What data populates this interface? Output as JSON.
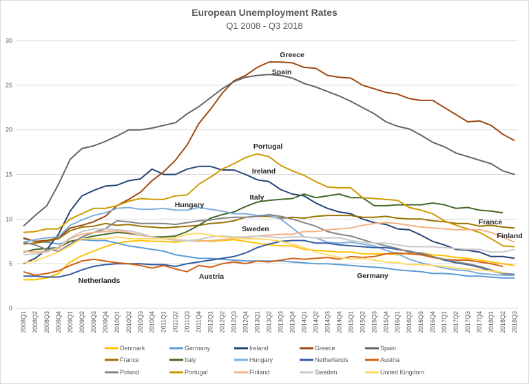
{
  "chart_data": {
    "type": "line",
    "title": "European Unemployment Rates",
    "subtitle": "Q1 2008 - Q3 2018",
    "xlabel": "",
    "ylabel": "",
    "ylim": [
      0,
      30
    ],
    "yticks": [
      0,
      5,
      10,
      15,
      20,
      25,
      30
    ],
    "grid": true,
    "legend": "bottom",
    "categories": [
      "2008Q1",
      "2008Q2",
      "2008Q3",
      "2008Q4",
      "2009Q1",
      "2009Q2",
      "2009Q3",
      "2009Q4",
      "2010Q1",
      "2010Q2",
      "2010Q3",
      "2010Q4",
      "2011Q1",
      "2011Q2",
      "2011Q3",
      "2011Q4",
      "2012Q1",
      "2012Q2",
      "2012Q3",
      "2012Q4",
      "2013Q1",
      "2013Q2",
      "2013Q3",
      "2013Q4",
      "2014Q1",
      "2014Q2",
      "2014Q3",
      "2014Q4",
      "2015Q1",
      "2015Q2",
      "2015Q3",
      "2015Q4",
      "2016Q1",
      "2016Q2",
      "2016Q3",
      "2016Q4",
      "2017Q1",
      "2017Q2",
      "2017Q3",
      "2017Q4",
      "2018Q1",
      "2018Q2",
      "2018Q3"
    ],
    "series": [
      {
        "name": "Denmark",
        "color": "#FFC000",
        "values": [
          3.2,
          3.2,
          3.4,
          3.9,
          5.2,
          5.9,
          6.4,
          6.9,
          7.3,
          7.5,
          7.6,
          7.5,
          7.5,
          7.4,
          7.6,
          7.6,
          7.5,
          7.6,
          7.7,
          7.5,
          7.3,
          7.1,
          7.0,
          7.0,
          6.6,
          6.5,
          6.4,
          6.3,
          6.3,
          6.1,
          6.1,
          6.1,
          6.0,
          6.2,
          6.2,
          6.0,
          5.9,
          5.7,
          5.6,
          5.4,
          5.2,
          5.0,
          4.8
        ]
      },
      {
        "name": "Germany",
        "color": "#5B9BD5",
        "values": [
          7.8,
          7.5,
          7.4,
          7.2,
          7.5,
          7.7,
          7.6,
          7.6,
          7.3,
          7.0,
          6.8,
          6.6,
          6.4,
          6.0,
          5.8,
          5.6,
          5.6,
          5.5,
          5.4,
          5.3,
          5.3,
          5.3,
          5.3,
          5.2,
          5.1,
          5.0,
          5.0,
          4.9,
          4.8,
          4.7,
          4.6,
          4.5,
          4.3,
          4.2,
          4.1,
          3.9,
          3.9,
          3.8,
          3.6,
          3.6,
          3.5,
          3.4,
          3.4
        ]
      },
      {
        "name": "Ireland",
        "color": "#264478",
        "values": [
          5.0,
          5.6,
          6.6,
          8.3,
          10.9,
          12.6,
          13.2,
          13.7,
          13.8,
          14.3,
          14.5,
          15.6,
          15.0,
          15.0,
          15.6,
          15.9,
          15.9,
          15.5,
          15.5,
          15.0,
          14.4,
          14.2,
          13.3,
          12.8,
          12.6,
          11.8,
          11.2,
          10.8,
          10.6,
          10.0,
          9.6,
          9.4,
          8.9,
          8.8,
          8.2,
          7.5,
          7.1,
          6.6,
          6.5,
          6.3,
          5.8,
          5.8,
          5.6
        ]
      },
      {
        "name": "Greece",
        "color": "#9E480E",
        "values": [
          7.9,
          7.5,
          7.6,
          7.9,
          9.0,
          9.3,
          9.7,
          10.3,
          11.5,
          12.2,
          13.0,
          14.3,
          15.3,
          16.6,
          18.3,
          20.7,
          22.3,
          24.1,
          25.5,
          26.1,
          27.0,
          27.6,
          27.6,
          27.5,
          27.0,
          26.9,
          26.1,
          25.9,
          25.8,
          25.0,
          24.6,
          24.2,
          24.0,
          23.5,
          23.3,
          23.3,
          22.5,
          21.7,
          20.9,
          21.0,
          20.5,
          19.5,
          18.8
        ]
      },
      {
        "name": "Spain",
        "color": "#636363",
        "values": [
          9.2,
          10.4,
          11.5,
          13.9,
          16.7,
          17.9,
          18.2,
          18.7,
          19.3,
          20.0,
          20.0,
          20.2,
          20.5,
          20.8,
          21.8,
          22.6,
          23.6,
          24.6,
          25.4,
          25.9,
          26.1,
          26.2,
          26.1,
          25.8,
          25.2,
          24.8,
          24.3,
          23.8,
          23.2,
          22.5,
          21.8,
          20.9,
          20.4,
          20.1,
          19.4,
          18.6,
          18.1,
          17.4,
          17.0,
          16.6,
          16.2,
          15.4,
          15.0
        ]
      },
      {
        "name": "France",
        "color": "#997300",
        "values": [
          7.2,
          7.3,
          7.5,
          7.8,
          8.7,
          9.1,
          9.2,
          9.5,
          9.3,
          9.4,
          9.2,
          9.1,
          9.0,
          9.1,
          9.2,
          9.3,
          9.5,
          9.6,
          9.8,
          10.2,
          10.3,
          10.3,
          10.1,
          10.2,
          10.1,
          10.3,
          10.4,
          10.4,
          10.4,
          10.2,
          10.2,
          10.3,
          10.1,
          10.0,
          10.0,
          9.8,
          9.7,
          9.5,
          9.5,
          9.2,
          9.3,
          9.1,
          9.0
        ]
      },
      {
        "name": "Italy",
        "color": "#43682B",
        "values": [
          6.3,
          6.6,
          6.7,
          6.8,
          7.5,
          7.8,
          8.1,
          8.3,
          8.5,
          8.4,
          8.2,
          8.0,
          8.0,
          8.1,
          8.6,
          9.3,
          10.1,
          10.5,
          10.8,
          11.4,
          11.9,
          12.1,
          12.2,
          12.3,
          12.8,
          12.4,
          12.6,
          12.8,
          12.4,
          12.4,
          11.5,
          11.5,
          11.6,
          11.6,
          11.6,
          11.8,
          11.6,
          11.2,
          11.3,
          11.0,
          10.9,
          10.7,
          null
        ]
      },
      {
        "name": "Hungary",
        "color": "#7CAFDD",
        "values": [
          7.4,
          7.7,
          7.9,
          8.0,
          9.3,
          9.9,
          10.4,
          10.7,
          11.2,
          11.3,
          11.1,
          11.1,
          11.2,
          11.0,
          11.0,
          11.3,
          11.1,
          10.9,
          10.6,
          10.6,
          10.4,
          10.4,
          10.0,
          9.0,
          8.0,
          7.9,
          7.4,
          7.3,
          7.4,
          7.2,
          7.0,
          6.5,
          6.1,
          5.5,
          5.1,
          4.8,
          4.5,
          4.3,
          4.2,
          3.9,
          3.8,
          3.7,
          3.7
        ]
      },
      {
        "name": "Netherlands",
        "color": "#335AA1",
        "values": [
          3.6,
          3.6,
          3.5,
          3.5,
          3.8,
          4.3,
          4.7,
          4.9,
          5.0,
          5.0,
          5.0,
          4.9,
          4.9,
          4.7,
          5.0,
          5.2,
          5.4,
          5.6,
          5.8,
          6.2,
          6.8,
          7.2,
          7.5,
          7.6,
          7.6,
          7.3,
          7.3,
          7.1,
          7.0,
          6.9,
          6.8,
          6.8,
          6.6,
          6.4,
          6.1,
          5.8,
          5.4,
          5.1,
          4.9,
          4.6,
          4.2,
          3.9,
          3.8
        ]
      },
      {
        "name": "Austria",
        "color": "#D26012",
        "values": [
          4.1,
          3.7,
          3.9,
          4.2,
          4.8,
          5.3,
          5.5,
          5.3,
          5.1,
          5.0,
          4.8,
          4.5,
          4.8,
          4.4,
          4.1,
          4.8,
          4.6,
          5.0,
          5.2,
          5.0,
          5.3,
          5.2,
          5.4,
          5.6,
          5.5,
          5.6,
          5.7,
          5.5,
          5.8,
          5.7,
          5.8,
          6.1,
          6.2,
          6.1,
          6.0,
          5.7,
          5.5,
          5.4,
          5.4,
          5.2,
          5.0,
          4.7,
          null
        ]
      },
      {
        "name": "Poland",
        "color": "#848484",
        "values": [
          7.4,
          7.1,
          6.6,
          6.4,
          7.2,
          8.0,
          8.5,
          8.9,
          9.8,
          9.7,
          9.5,
          9.5,
          9.5,
          9.4,
          9.6,
          9.8,
          9.9,
          10.1,
          10.2,
          10.2,
          10.3,
          10.5,
          10.3,
          10.0,
          9.6,
          9.2,
          8.6,
          8.3,
          8.1,
          7.7,
          7.3,
          7.0,
          6.7,
          6.3,
          6.2,
          5.8,
          5.5,
          5.2,
          5.0,
          4.7,
          4.3,
          3.9,
          3.8
        ]
      },
      {
        "name": "Portugal",
        "color": "#CC9A00",
        "values": [
          8.5,
          8.6,
          8.9,
          8.9,
          10.0,
          10.6,
          11.2,
          11.2,
          11.5,
          12.0,
          12.3,
          12.2,
          12.2,
          12.6,
          12.7,
          13.9,
          14.7,
          15.6,
          16.2,
          16.9,
          17.3,
          17.0,
          16.0,
          15.4,
          14.9,
          14.2,
          13.6,
          13.5,
          13.5,
          12.4,
          12.3,
          12.2,
          12.1,
          11.3,
          11.0,
          10.6,
          9.8,
          9.3,
          8.9,
          8.5,
          7.8,
          7.0,
          6.9
        ]
      },
      {
        "name": "Finland",
        "color": "#F4B183",
        "values": [
          6.4,
          6.3,
          6.4,
          6.7,
          7.8,
          8.3,
          8.5,
          8.6,
          8.7,
          8.5,
          8.2,
          8.0,
          7.8,
          7.7,
          7.6,
          7.5,
          7.6,
          7.7,
          7.8,
          7.9,
          8.1,
          8.2,
          8.3,
          8.3,
          8.6,
          8.6,
          8.8,
          8.9,
          9.0,
          9.3,
          9.5,
          9.6,
          9.5,
          9.3,
          9.1,
          9.0,
          8.9,
          8.8,
          8.8,
          8.8,
          8.5,
          8.0,
          7.4
        ]
      },
      {
        "name": "Sweden",
        "color": "#C9C9C9",
        "values": [
          6.0,
          6.1,
          6.3,
          6.9,
          7.9,
          8.6,
          8.9,
          8.9,
          8.8,
          8.7,
          8.4,
          8.0,
          7.8,
          7.6,
          7.6,
          7.7,
          8.0,
          8.1,
          8.0,
          8.0,
          8.1,
          8.0,
          7.9,
          8.0,
          8.0,
          7.9,
          7.9,
          7.9,
          7.6,
          7.4,
          7.3,
          7.3,
          7.1,
          6.9,
          6.9,
          6.9,
          6.8,
          6.7,
          6.6,
          6.6,
          6.3,
          6.3,
          6.6
        ]
      },
      {
        "name": "United Kingdom",
        "color": "#FFD966",
        "values": [
          5.1,
          5.3,
          5.8,
          6.3,
          7.0,
          7.8,
          7.8,
          7.8,
          8.0,
          7.8,
          7.8,
          7.8,
          7.8,
          7.9,
          8.3,
          8.4,
          8.2,
          8.0,
          7.9,
          7.8,
          7.8,
          7.7,
          7.5,
          7.2,
          6.8,
          6.3,
          6.0,
          5.7,
          5.5,
          5.6,
          5.4,
          5.2,
          5.1,
          4.9,
          4.9,
          4.8,
          4.7,
          4.5,
          4.4,
          4.3,
          4.2,
          4.0,
          null
        ]
      }
    ],
    "annotations": [
      {
        "text": "Greece",
        "series": "Greece"
      },
      {
        "text": "Spain",
        "series": "Spain"
      },
      {
        "text": "Portugal",
        "series": "Portugal"
      },
      {
        "text": "Ireland",
        "series": "Ireland"
      },
      {
        "text": "Italy",
        "series": "Italy"
      },
      {
        "text": "Hungary",
        "series": "Hungary"
      },
      {
        "text": "Sweden",
        "series": "Sweden"
      },
      {
        "text": "France",
        "series": "France"
      },
      {
        "text": "Finland",
        "series": "Finland"
      },
      {
        "text": "Netherlands",
        "series": "Netherlands"
      },
      {
        "text": "Austria",
        "series": "Austria"
      },
      {
        "text": "Germany",
        "series": "Germany"
      }
    ]
  }
}
